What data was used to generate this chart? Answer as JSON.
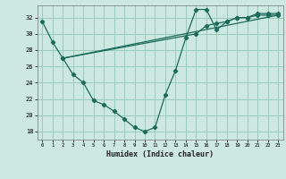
{
  "background_color": "#cce8e0",
  "grid_color": "#99ccbb",
  "line_color": "#1a6b5a",
  "xlabel": "Humidex (Indice chaleur)",
  "xlim": [
    -0.5,
    23.5
  ],
  "ylim": [
    17.0,
    33.5
  ],
  "yticks": [
    18,
    20,
    22,
    24,
    26,
    28,
    30,
    32
  ],
  "xticks": [
    0,
    1,
    2,
    3,
    4,
    5,
    6,
    7,
    8,
    9,
    10,
    11,
    12,
    13,
    14,
    15,
    16,
    17,
    18,
    19,
    20,
    21,
    22,
    23
  ],
  "line1_x": [
    0,
    1,
    2,
    3,
    4,
    5,
    6,
    7,
    8,
    9,
    10,
    11,
    12,
    13,
    14,
    15,
    16,
    17,
    18,
    19,
    20,
    21,
    22,
    23
  ],
  "line1_y": [
    31.5,
    29.0,
    27.0,
    25.0,
    24.0,
    21.8,
    21.3,
    20.5,
    19.5,
    18.5,
    18.0,
    18.5,
    22.5,
    25.5,
    29.5,
    33.0,
    33.0,
    30.5,
    31.5,
    32.0,
    32.0,
    32.5,
    32.5,
    32.5
  ],
  "line2_x": [
    2,
    15,
    16,
    17,
    18,
    19,
    20,
    21,
    22,
    23
  ],
  "line2_y": [
    27.0,
    30.0,
    31.0,
    31.3,
    31.5,
    32.0,
    32.0,
    32.3,
    32.3,
    32.3
  ],
  "line3_x": [
    2,
    23
  ],
  "line3_y": [
    27.0,
    32.3
  ]
}
